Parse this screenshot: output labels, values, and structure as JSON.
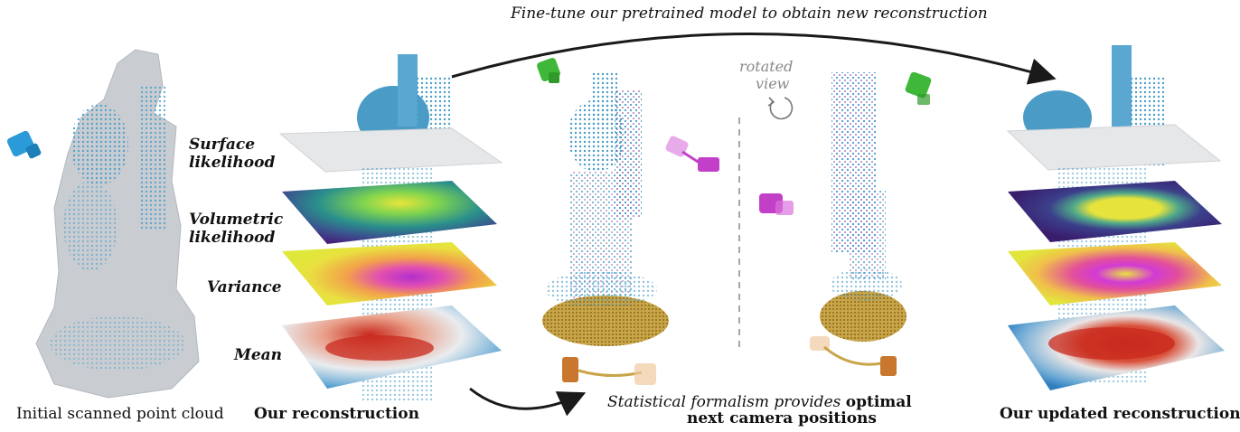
{
  "top_annotation": "Fine-tune our pretrained model to obtain new reconstruction",
  "rotated_view": [
    "rotated",
    "view"
  ],
  "layer_labels": {
    "surface": [
      "Surface",
      "likelihood"
    ],
    "volumetric": [
      "Volumetric",
      "likelihood"
    ],
    "variance": "Variance",
    "mean": "Mean"
  },
  "captions": {
    "initial": "Initial scanned point cloud",
    "ours": "Our reconstruction",
    "statistical_italic": "Statistical formalism provides",
    "statistical_bold_1": "optimal",
    "statistical_bold_2": "next camera positions",
    "updated": "Our updated reconstruction"
  },
  "colors": {
    "statue_gray": "#c9cdd2",
    "point_blue": "#4a9cc7",
    "camera_blue": "#2a9ad8",
    "camera_green": "#3fb83a",
    "camera_magenta": "#c23fc8",
    "camera_orange": "#c9772f",
    "base_gold": "#b8902a",
    "viridis_dark": "#46217a",
    "viridis_yellow": "#e7e43a",
    "variance_magenta": "#d23ad6",
    "mean_red": "#c82a1e",
    "mean_blue": "#2f8ec6"
  },
  "icons": [
    "camera-icon",
    "rotate-arrow-icon"
  ]
}
